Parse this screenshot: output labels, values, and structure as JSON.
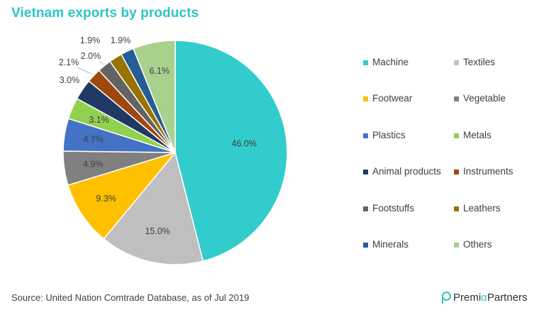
{
  "title": "Vietnam exports by products",
  "source": "Source: United Nation Comtrade Database, as of Jul 2019",
  "brand": {
    "name_part1": "Premi",
    "name_alpha": "α",
    "name_part2": " Partners"
  },
  "chart_data": {
    "type": "pie",
    "title": "Vietnam exports by products",
    "legend_position": "right",
    "slices": [
      {
        "label": "Machine",
        "value": 46.0,
        "display": "46.0%",
        "color": "#33cccc"
      },
      {
        "label": "Textiles",
        "value": 15.0,
        "display": "15.0%",
        "color": "#bfbfbf"
      },
      {
        "label": "Footwear",
        "value": 9.3,
        "display": "9.3%",
        "color": "#ffc000"
      },
      {
        "label": "Vegetable",
        "value": 4.9,
        "display": "4.9%",
        "color": "#808080"
      },
      {
        "label": "Plastics",
        "value": 4.7,
        "display": "4.7%",
        "color": "#4472c4"
      },
      {
        "label": "Metals",
        "value": 3.1,
        "display": "3.1%",
        "color": "#92d050"
      },
      {
        "label": "Animal products",
        "value": 3.0,
        "display": "3.0%",
        "color": "#203864"
      },
      {
        "label": "Instruments",
        "value": 2.1,
        "display": "2.1%",
        "color": "#9e480e"
      },
      {
        "label": "Footstuffs",
        "value": 2.0,
        "display": "2.0%",
        "color": "#636363"
      },
      {
        "label": "Leathers",
        "value": 1.9,
        "display": "1.9%",
        "color": "#997300"
      },
      {
        "label": "Minerals",
        "value": 1.9,
        "display": "1.9%",
        "color": "#255e91"
      },
      {
        "label": "Others",
        "value": 6.1,
        "display": "6.1%",
        "color": "#a9d18e"
      }
    ]
  }
}
